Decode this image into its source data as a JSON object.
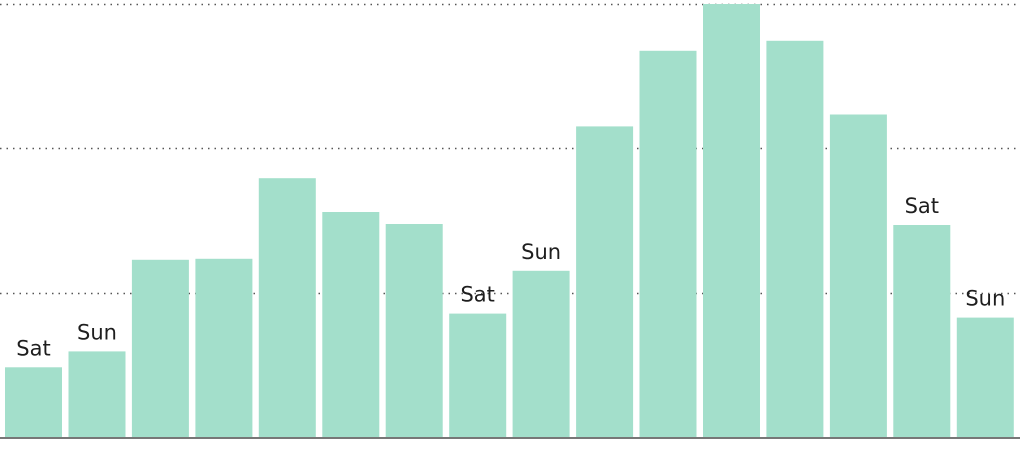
{
  "chart_data": {
    "type": "bar",
    "title": "",
    "xlabel": "",
    "ylabel": "",
    "ylim": [
      0,
      43.5
    ],
    "grid": true,
    "gridlines_y": [
      14.5,
      29,
      43.5
    ],
    "values": [
      7,
      8.6,
      17.8,
      17.9,
      26,
      22.6,
      21.4,
      12.4,
      16.7,
      31.2,
      38.8,
      43.5,
      39.8,
      32.4,
      21.3,
      12
    ],
    "bar_labels": [
      "Sat",
      "Sun",
      "",
      "",
      "",
      "",
      "",
      "Sat",
      "Sun",
      "",
      "",
      "",
      "",
      "",
      "Sat",
      "Sun"
    ],
    "colors": {
      "bar": "#a3dfcb",
      "label_text": "#1e1e1e",
      "gridline": "#555555",
      "baseline": "#777777"
    }
  }
}
